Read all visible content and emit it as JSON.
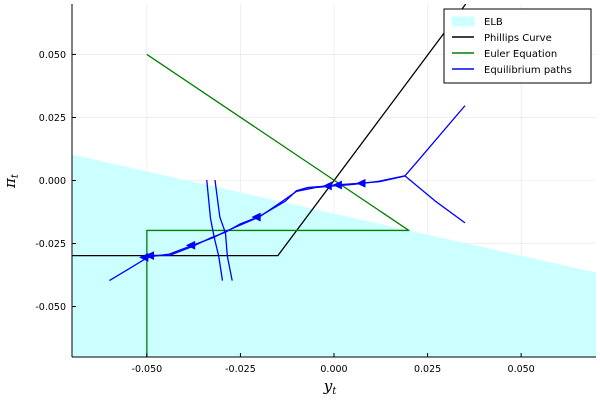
{
  "chart_data": {
    "type": "line",
    "title": "",
    "xlabel": "y",
    "xlabel_sub": "t",
    "ylabel": "π",
    "ylabel_sub": "t",
    "xlim": [
      -0.07,
      0.07
    ],
    "ylim": [
      -0.07,
      0.07
    ],
    "xticks": [
      -0.05,
      -0.025,
      0.0,
      0.025,
      0.05
    ],
    "xtick_labels": [
      "-0.050",
      "-0.025",
      "0.000",
      "0.025",
      "0.050"
    ],
    "yticks": [
      -0.05,
      -0.025,
      0.0,
      0.025,
      0.05
    ],
    "ytick_labels": [
      "-0.050",
      "-0.025",
      "0.000",
      "0.025",
      "0.050"
    ],
    "grid": true,
    "legend_position": "top-right",
    "colors": {
      "elb": "#ccffff",
      "phillips": "#000000",
      "euler": "#008000",
      "paths": "#0000ff"
    },
    "series": [
      {
        "name": "ELB",
        "kind": "area",
        "color": "#ccffff",
        "upper_boundary": [
          [
            -0.07,
            0.0103
          ],
          [
            0.07,
            -0.0365
          ]
        ],
        "lower": -0.07
      },
      {
        "name": "Phillips Curve",
        "kind": "line",
        "color": "#000000",
        "points": [
          [
            -0.07,
            -0.0298
          ],
          [
            -0.015,
            -0.0298
          ],
          [
            0.0,
            0.0
          ],
          [
            0.0352,
            0.07
          ]
        ]
      },
      {
        "name": "Euler Equation",
        "kind": "line",
        "color": "#008000",
        "segments": [
          [
            [
              -0.05,
              0.05
            ],
            [
              0.02,
              -0.0198
            ],
            [
              -0.05,
              -0.0198
            ],
            [
              -0.05,
              -0.07
            ]
          ]
        ]
      },
      {
        "name": "Equilibrium paths",
        "kind": "line",
        "color": "#0000ff",
        "segments": [
          [
            [
              -0.06,
              -0.0397
            ],
            [
              -0.05,
              -0.0307
            ],
            [
              -0.048,
              -0.03
            ],
            [
              -0.044,
              -0.0292
            ],
            [
              -0.038,
              -0.0258
            ],
            [
              -0.032,
              -0.0225
            ],
            [
              -0.029,
              -0.0202
            ],
            [
              -0.024,
              -0.017
            ],
            [
              -0.02,
              -0.0145
            ],
            [
              -0.015,
              -0.0095
            ],
            [
              -0.01,
              -0.0043
            ],
            [
              -0.005,
              -0.0028
            ],
            [
              0.0,
              -0.0021
            ],
            [
              0.005,
              -0.0016
            ],
            [
              0.01,
              -0.0007
            ],
            [
              0.012,
              -0.0003
            ],
            [
              0.019,
              0.0019
            ],
            [
              0.023,
              0.0088
            ],
            [
              0.035,
              0.0297
            ]
          ],
          [
            [
              -0.05,
              -0.0307
            ],
            [
              -0.048,
              -0.0297
            ],
            [
              -0.044,
              -0.0297
            ],
            [
              -0.038,
              -0.0263
            ],
            [
              -0.033,
              -0.0228
            ],
            [
              -0.029,
              -0.0205
            ],
            [
              -0.025,
              -0.0172
            ],
            [
              -0.02,
              -0.0143
            ],
            [
              -0.013,
              -0.0082
            ],
            [
              -0.01,
              -0.004
            ],
            [
              -0.007,
              -0.0028
            ],
            [
              -0.002,
              -0.0022
            ],
            [
              0.0,
              -0.0018
            ],
            [
              0.005,
              -0.0013
            ],
            [
              0.012,
              -0.0005
            ],
            [
              0.019,
              0.0018
            ],
            [
              0.027,
              -0.0081
            ],
            [
              0.035,
              -0.0168
            ]
          ],
          [
            [
              -0.034,
              0.0002
            ],
            [
              -0.033,
              -0.015
            ],
            [
              -0.032,
              -0.0226
            ],
            [
              -0.0308,
              -0.03
            ],
            [
              -0.0298,
              -0.0397
            ]
          ],
          [
            [
              -0.0318,
              0.0002
            ],
            [
              -0.0305,
              -0.0145
            ],
            [
              -0.029,
              -0.0208
            ],
            [
              -0.0285,
              -0.03
            ],
            [
              -0.0272,
              -0.0397
            ]
          ]
        ],
        "arrows": [
          [
            -0.0505,
            -0.0305
          ],
          [
            -0.049,
            -0.0298
          ],
          [
            -0.038,
            -0.0257
          ],
          [
            -0.0205,
            -0.0145
          ],
          [
            -0.0015,
            -0.0022
          ],
          [
            0.0012,
            -0.0018
          ],
          [
            0.0075,
            -0.0011
          ]
        ]
      }
    ]
  }
}
